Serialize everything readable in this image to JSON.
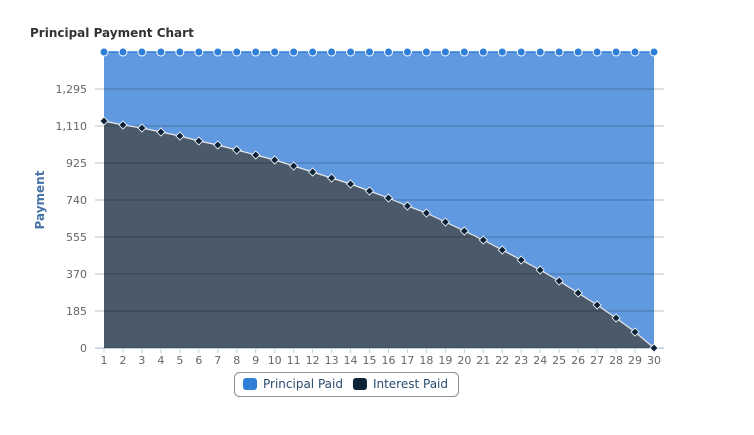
{
  "chart_data": {
    "type": "stacked-area",
    "title": "Principal Payment Chart",
    "y_label": "Payment",
    "categories": [
      "1",
      "2",
      "3",
      "4",
      "5",
      "6",
      "7",
      "8",
      "9",
      "10",
      "11",
      "12",
      "13",
      "14",
      "15",
      "16",
      "17",
      "18",
      "19",
      "20",
      "21",
      "22",
      "23",
      "24",
      "25",
      "26",
      "27",
      "28",
      "29",
      "30"
    ],
    "series": [
      {
        "name": "Interest Paid",
        "color": "#4a5a6a",
        "marker_color": "#0d233a",
        "values": [
          1135,
          1115,
          1100,
          1080,
          1060,
          1035,
          1015,
          990,
          965,
          940,
          910,
          880,
          850,
          820,
          785,
          750,
          710,
          675,
          630,
          585,
          540,
          490,
          440,
          390,
          335,
          275,
          215,
          150,
          80,
          0
        ]
      },
      {
        "name": "Principal Paid",
        "color": "#6199e0",
        "marker_color": "#2f7ed8",
        "values": [
          345,
          365,
          380,
          400,
          420,
          445,
          465,
          490,
          515,
          540,
          570,
          600,
          630,
          660,
          695,
          730,
          770,
          805,
          850,
          895,
          940,
          990,
          1040,
          1090,
          1145,
          1205,
          1265,
          1330,
          1400,
          1480
        ]
      }
    ],
    "ylim": [
      0,
      1480
    ],
    "yticks": [
      0,
      185,
      370,
      555,
      740,
      925,
      {
        "value": 1110,
        "label": "1,110"
      },
      {
        "value": 1295,
        "label": "1,295"
      }
    ],
    "grid": true
  }
}
